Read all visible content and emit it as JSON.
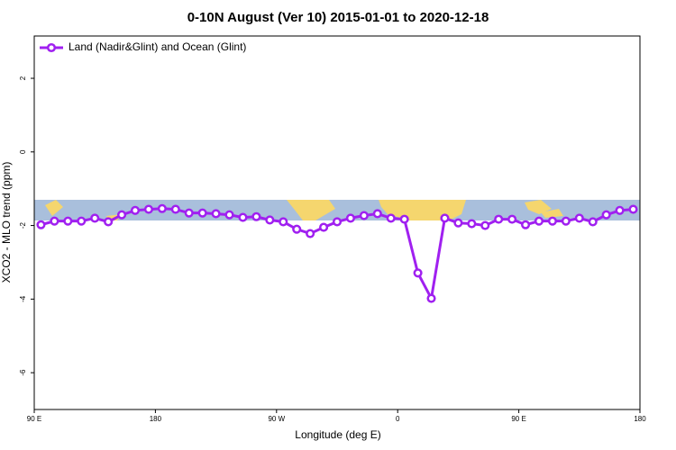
{
  "chart_data": {
    "type": "line",
    "title": "0-10N August (Ver 10)   2015-01-01 to 2020-12-18",
    "x_label": "Longitude (deg E)",
    "y_label": "XCO2 - MLO trend (ppm)",
    "x": [
      95,
      105,
      115,
      125,
      135,
      145,
      155,
      165,
      175,
      185,
      195,
      205,
      215,
      225,
      235,
      245,
      255,
      265,
      275,
      285,
      295,
      305,
      315,
      325,
      335,
      345,
      355,
      365,
      375,
      385,
      395,
      405,
      415,
      425,
      435,
      445,
      455,
      465,
      475,
      485,
      495,
      505,
      515,
      525,
      535
    ],
    "series": [
      {
        "name": "Land (Nadir&Glint) and Ocean (Glint)",
        "color": "#a020f0",
        "values": [
          -1.98,
          -1.88,
          -1.88,
          -1.88,
          -1.8,
          -1.9,
          -1.71,
          -1.59,
          -1.56,
          -1.54,
          -1.56,
          -1.66,
          -1.66,
          -1.68,
          -1.71,
          -1.78,
          -1.76,
          -1.85,
          -1.9,
          -2.1,
          -2.22,
          -2.05,
          -1.9,
          -1.8,
          -1.73,
          -1.68,
          -1.8,
          -1.83,
          -3.29,
          -3.98,
          -1.8,
          -1.93,
          -1.95,
          -2.0,
          -1.83,
          -1.83,
          -1.98,
          -1.88,
          -1.88,
          -1.88,
          -1.8,
          -1.9,
          -1.71,
          -1.59,
          -1.56
        ]
      }
    ],
    "xlim": [
      90,
      540
    ],
    "ylim": [
      -7,
      3.15
    ],
    "xticks": [
      {
        "value": 90,
        "label": "90 E"
      },
      180,
      {
        "value": 270,
        "label": "90 W"
      },
      {
        "value": 360,
        "label": "0"
      },
      {
        "value": 450,
        "label": "90 E"
      },
      {
        "value": 540,
        "label": "180"
      }
    ],
    "yticks": [
      -6,
      -4,
      -2,
      0,
      2
    ],
    "legend": "top-left"
  }
}
